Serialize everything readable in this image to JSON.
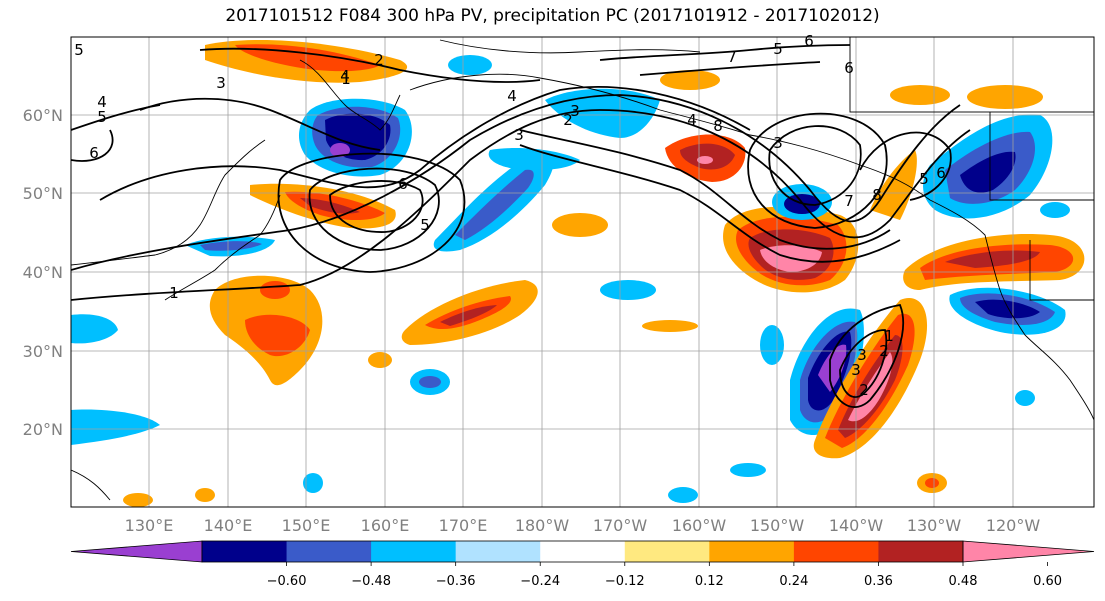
{
  "title": "2017101512 F084 300 hPa PV, precipitation PC (2017101912 - 2017102012)",
  "lat_labels": [
    "60°N",
    "50°N",
    "40°N",
    "30°N",
    "20°N"
  ],
  "lon_labels": [
    "130°E",
    "140°E",
    "150°E",
    "160°E",
    "170°E",
    "180°W",
    "170°W",
    "160°W",
    "150°W",
    "140°W",
    "130°W",
    "120°W"
  ],
  "colorbar": {
    "colors": [
      "#9a3fd1",
      "#00008b",
      "#3a5bc9",
      "#00bfff",
      "#b0e2ff",
      "#ffffff",
      "#ffe980",
      "#ffa500",
      "#ff4500",
      "#b22222",
      "#ff85a8"
    ],
    "tick_labels": [
      "−0.60",
      "−0.48",
      "−0.36",
      "−0.24",
      "−0.12",
      "0.12",
      "0.24",
      "0.36",
      "0.48",
      "0.60"
    ]
  },
  "pv_contour_labels": [
    "5",
    "4",
    "5",
    "6",
    "2",
    "1",
    "4",
    "3",
    "4",
    "6",
    "5",
    "1",
    "3",
    "2",
    "3",
    "4",
    "5",
    "6",
    "7",
    "8",
    "6",
    "3",
    "7",
    "8",
    "5",
    "6",
    "2",
    "3",
    "3",
    "2",
    "1"
  ],
  "colors": {
    "pv_contour": "#000000",
    "coastline": "#000000",
    "gridline": "#a0a0a0",
    "axis_label": "#808080"
  }
}
